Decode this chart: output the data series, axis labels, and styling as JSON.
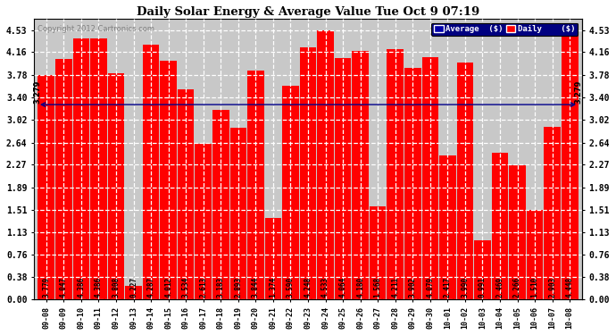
{
  "title": "Daily Solar Energy & Average Value Tue Oct 9 07:19",
  "copyright": "Copyright 2012 Cartronics.com",
  "average_value": 3.279,
  "average_label": "3.279",
  "bar_color": "#FF0000",
  "average_line_color": "#00008B",
  "background_color": "#FFFFFF",
  "plot_bg_color": "#C8C8C8",
  "ylim": [
    0,
    4.72
  ],
  "yticks": [
    0.0,
    0.38,
    0.76,
    1.13,
    1.51,
    1.89,
    2.27,
    2.64,
    3.02,
    3.4,
    3.78,
    4.16,
    4.53
  ],
  "legend_avg_color": "#0000AA",
  "legend_daily_color": "#FF0000",
  "categories": [
    "09-08",
    "09-09",
    "09-10",
    "09-11",
    "09-12",
    "09-13",
    "09-14",
    "09-15",
    "09-16",
    "09-17",
    "09-18",
    "09-19",
    "09-20",
    "09-21",
    "09-22",
    "09-23",
    "09-24",
    "09-25",
    "09-26",
    "09-27",
    "09-28",
    "09-29",
    "09-30",
    "10-01",
    "10-02",
    "10-03",
    "10-04",
    "10-05",
    "10-06",
    "10-07",
    "10-08"
  ],
  "values": [
    3.779,
    4.047,
    4.386,
    4.386,
    3.808,
    0.227,
    4.287,
    4.012,
    3.534,
    2.613,
    3.183,
    2.893,
    3.844,
    1.374,
    3.59,
    4.248,
    4.533,
    4.064,
    4.18,
    1.568,
    4.211,
    3.902,
    4.079,
    2.417,
    3.99,
    0.991,
    2.469,
    2.266,
    1.51,
    2.903,
    4.448
  ],
  "value_labels": [
    "3.779",
    "4.047",
    "4.386",
    "4.386",
    "3.808",
    "0.227",
    "4.287",
    "4.012",
    "3.534",
    "2.613",
    "3.183",
    "2.893",
    "3.844",
    "1.374",
    "3.590",
    "4.248",
    "4.533",
    "4.064",
    "4.180",
    "1.568",
    "4.211",
    "3.902",
    "4.079",
    "2.417",
    "3.990",
    "0.991",
    "2.469",
    "2.266",
    "1.510",
    "2.903",
    "4.448"
  ]
}
